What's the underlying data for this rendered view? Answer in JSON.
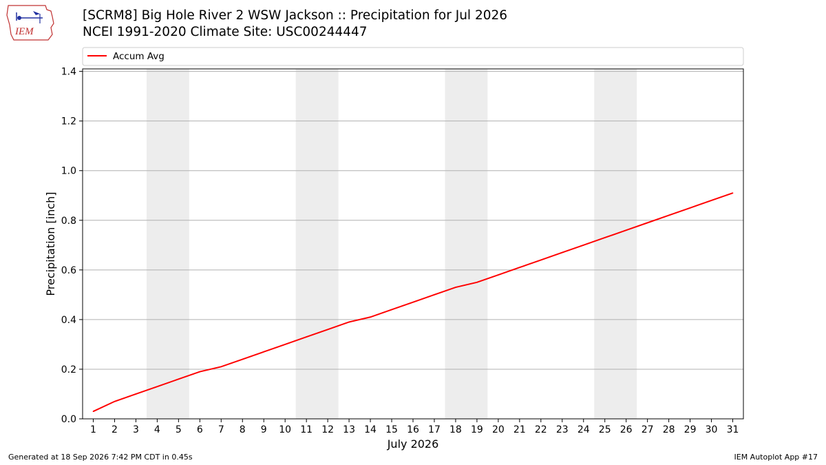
{
  "header": {
    "logo_text": "IEM",
    "title_line1": "[SCRM8] Big Hole River 2 WSW Jackson :: Precipitation for Jul 2026",
    "title_line2": "NCEI 1991-2020 Climate Site: USC00244447"
  },
  "footer": {
    "generated": "Generated at 18 Sep 2026 7:42 PM CDT in 0.45s",
    "app": "IEM Autoplot App #17"
  },
  "chart_data": {
    "type": "line",
    "title": "",
    "xlabel": "July 2026",
    "ylabel": "Precipitation [inch]",
    "x": [
      1,
      2,
      3,
      4,
      5,
      6,
      7,
      8,
      9,
      10,
      11,
      12,
      13,
      14,
      15,
      16,
      17,
      18,
      19,
      20,
      21,
      22,
      23,
      24,
      25,
      26,
      27,
      28,
      29,
      30,
      31
    ],
    "xlim": [
      0.5,
      31.5
    ],
    "ylim": [
      0,
      1.41
    ],
    "yticks": [
      "0.0",
      "0.2",
      "0.4",
      "0.6",
      "0.8",
      "1.0",
      "1.2",
      "1.4"
    ],
    "ytick_values": [
      0,
      0.2,
      0.4,
      0.6,
      0.8,
      1.0,
      1.2,
      1.4
    ],
    "grid": "horizontal",
    "legend_position": "top",
    "weekend_shading": [
      [
        3.5,
        5.5
      ],
      [
        10.5,
        12.5
      ],
      [
        17.5,
        19.5
      ],
      [
        24.5,
        26.5
      ]
    ],
    "shading_color": "#ededed",
    "series": [
      {
        "name": "Accum Avg",
        "color": "#ff0000",
        "values": [
          0.03,
          0.07,
          0.1,
          0.13,
          0.16,
          0.19,
          0.21,
          0.24,
          0.27,
          0.3,
          0.33,
          0.36,
          0.39,
          0.41,
          0.44,
          0.47,
          0.5,
          0.53,
          0.55,
          0.58,
          0.61,
          0.64,
          0.67,
          0.7,
          0.73,
          0.76,
          0.79,
          0.82,
          0.85,
          0.88,
          0.91
        ]
      }
    ]
  }
}
